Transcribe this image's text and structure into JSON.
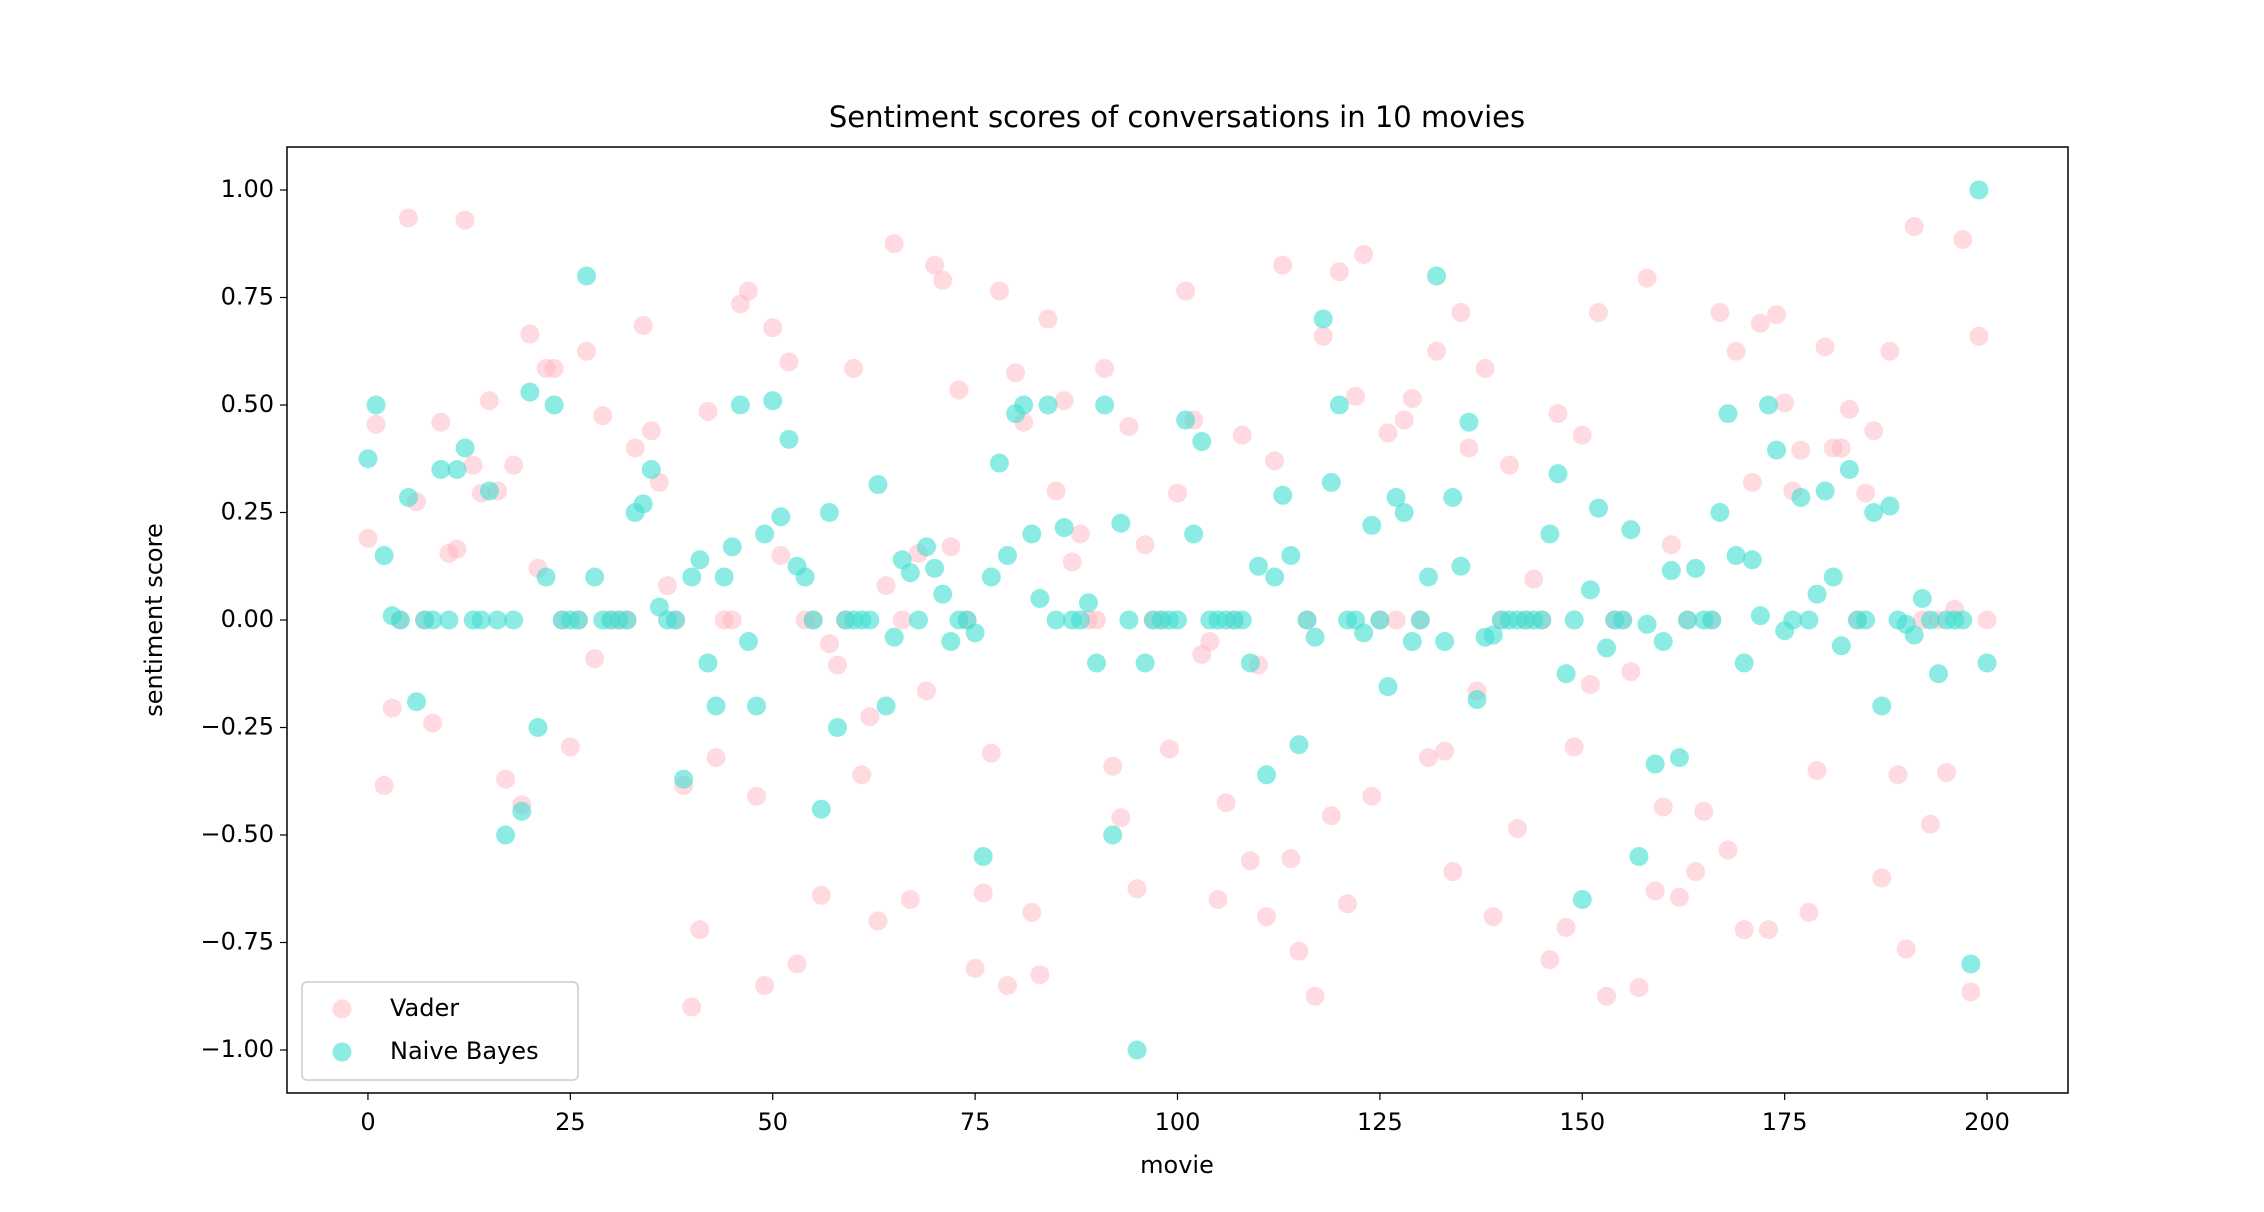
{
  "chart_data": {
    "type": "scatter",
    "title": "Sentiment scores of conversations in 10 movies",
    "xlabel": "movie",
    "ylabel": "sentiment score",
    "xlim": [
      -10,
      210
    ],
    "ylim": [
      -1.1,
      1.1
    ],
    "xticks": [
      0,
      25,
      50,
      75,
      100,
      125,
      150,
      175,
      200
    ],
    "yticks": [
      {
        "value": -1,
        "label": "−1.00"
      },
      {
        "value": -0.75,
        "label": "−0.75"
      },
      {
        "value": -0.5,
        "label": "−0.50"
      },
      {
        "value": -0.25,
        "label": "−0.25"
      },
      {
        "value": 0,
        "label": "0.00"
      },
      {
        "value": 0.25,
        "label": "0.25"
      },
      {
        "value": 0.5,
        "label": "0.50"
      },
      {
        "value": 0.75,
        "label": "0.75"
      },
      {
        "value": 1,
        "label": "1.00"
      }
    ],
    "grid": false,
    "legend": "lower left",
    "x": [
      0,
      1,
      2,
      3,
      4,
      5,
      6,
      7,
      8,
      9,
      10,
      11,
      12,
      13,
      14,
      15,
      16,
      17,
      18,
      19,
      20,
      21,
      22,
      23,
      24,
      25,
      26,
      27,
      28,
      29,
      30,
      31,
      32,
      33,
      34,
      35,
      36,
      37,
      38,
      39,
      40,
      41,
      42,
      43,
      44,
      45,
      46,
      47,
      48,
      49,
      50,
      51,
      52,
      53,
      54,
      55,
      56,
      57,
      58,
      59,
      60,
      61,
      62,
      63,
      64,
      65,
      66,
      67,
      68,
      69,
      70,
      71,
      72,
      73,
      74,
      75,
      76,
      77,
      78,
      79,
      80,
      81,
      82,
      83,
      84,
      85,
      86,
      87,
      88,
      89,
      90,
      91,
      92,
      93,
      94,
      95,
      96,
      97,
      98,
      99,
      100,
      101,
      102,
      103,
      104,
      105,
      106,
      107,
      108,
      109,
      110,
      111,
      112,
      113,
      114,
      115,
      116,
      117,
      118,
      119,
      120,
      121,
      122,
      123,
      124,
      125,
      126,
      127,
      128,
      129,
      130,
      131,
      132,
      133,
      134,
      135,
      136,
      137,
      138,
      139,
      140,
      141,
      142,
      143,
      144,
      145,
      146,
      147,
      148,
      149,
      150,
      151,
      152,
      153,
      154,
      155,
      156,
      157,
      158,
      159,
      160,
      161,
      162,
      163,
      164,
      165,
      166,
      167,
      168,
      169,
      170,
      171,
      172,
      173,
      174,
      175,
      176,
      177,
      178,
      179,
      180,
      181,
      182,
      183,
      184,
      185,
      186,
      187,
      188,
      189,
      190,
      191,
      192,
      193,
      194,
      195,
      196,
      197,
      198,
      199,
      200
    ],
    "series": [
      {
        "name": "Vader",
        "color": "#ffb6c1",
        "values": [
          0.19,
          0.455,
          -0.385,
          -0.205,
          0,
          0.935,
          0.275,
          0,
          -0.24,
          0.46,
          0.155,
          0.165,
          0.93,
          0.36,
          0.295,
          0.51,
          0.3,
          -0.37,
          0.36,
          -0.43,
          0.665,
          0.12,
          0.585,
          0.585,
          0,
          -0.295,
          0,
          0.625,
          -0.09,
          0.475,
          0,
          0,
          0,
          0.4,
          0.685,
          0.44,
          0.32,
          0.08,
          0,
          -0.385,
          -0.9,
          -0.72,
          0.485,
          -0.32,
          0,
          0,
          0.735,
          0.765,
          -0.41,
          -0.85,
          0.68,
          0.15,
          0.6,
          -0.8,
          0,
          0,
          -0.64,
          -0.055,
          -0.105,
          0,
          0.585,
          -0.36,
          -0.225,
          -0.7,
          0.08,
          0.875,
          0,
          -0.65,
          0.155,
          -0.165,
          0.825,
          0.79,
          0.17,
          0.535,
          0,
          -0.81,
          -0.635,
          -0.31,
          0.765,
          -0.85,
          0.575,
          0.46,
          -0.68,
          -0.825,
          0.7,
          0.3,
          0.51,
          0.135,
          0.2,
          0,
          0,
          0.585,
          -0.34,
          -0.46,
          0.45,
          -0.625,
          0.175,
          0,
          0,
          -0.3,
          0.295,
          0.765,
          0.465,
          -0.08,
          -0.05,
          -0.65,
          -0.425,
          0,
          0.43,
          -0.56,
          -0.105,
          -0.69,
          0.37,
          0.825,
          -0.555,
          -0.77,
          0,
          -0.875,
          0.66,
          -0.455,
          0.81,
          -0.66,
          0.52,
          0.85,
          -0.41,
          0,
          0.435,
          0,
          0.465,
          0.515,
          0,
          -0.32,
          0.625,
          -0.305,
          -0.585,
          0.715,
          0.4,
          -0.165,
          0.585,
          -0.69,
          0,
          0.36,
          -0.485,
          0,
          0.095,
          0,
          -0.79,
          0.48,
          -0.715,
          -0.295,
          0.43,
          -0.15,
          0.715,
          -0.875,
          0,
          0,
          -0.12,
          -0.855,
          0.795,
          -0.63,
          -0.435,
          0.175,
          -0.645,
          0,
          -0.585,
          -0.445,
          0,
          0.715,
          -0.535,
          0.625,
          -0.72,
          0.32,
          0.69,
          -0.72,
          0.71,
          0.505,
          0.3,
          0.395,
          -0.68,
          -0.35,
          0.635,
          0.4,
          0.4,
          0.49,
          0,
          0.295,
          0.44,
          -0.6,
          0.625,
          -0.36,
          -0.765,
          0.915,
          0,
          -0.475,
          0,
          -0.355,
          0.025,
          0.885,
          -0.865,
          0.66,
          0
        ]
      },
      {
        "name": "Naive Bayes",
        "color": "#40e0d0",
        "values": [
          0.375,
          0.5,
          0.15,
          0.01,
          0,
          0.285,
          -0.19,
          0,
          0,
          0.35,
          0,
          0.35,
          0.4,
          0,
          0,
          0.3,
          0,
          -0.5,
          0,
          -0.445,
          0.53,
          -0.25,
          0.1,
          0.5,
          0,
          0,
          0,
          0.8,
          0.1,
          0,
          0,
          0,
          0,
          0.25,
          0.27,
          0.35,
          0.03,
          0,
          0,
          -0.37,
          0.1,
          0.14,
          -0.1,
          -0.2,
          0.1,
          0.17,
          0.5,
          -0.05,
          -0.2,
          0.2,
          0.51,
          0.24,
          0.42,
          0.125,
          0.1,
          0,
          -0.44,
          0.25,
          -0.25,
          0,
          0,
          0,
          0,
          0.315,
          -0.2,
          -0.04,
          0.14,
          0.11,
          0,
          0.17,
          0.12,
          0.06,
          -0.05,
          0,
          0,
          -0.03,
          -0.55,
          0.1,
          0.365,
          0.15,
          0.48,
          0.5,
          0.2,
          0.05,
          0.5,
          0,
          0.215,
          0,
          0,
          0.04,
          -0.1,
          0.5,
          -0.5,
          0.225,
          0,
          -1,
          -0.1,
          0,
          0,
          0,
          0,
          0.465,
          0.2,
          0.415,
          0,
          0,
          0,
          0,
          0,
          -0.1,
          0.125,
          -0.36,
          0.1,
          0.29,
          0.15,
          -0.29,
          0,
          -0.04,
          0.7,
          0.32,
          0.5,
          0,
          0,
          -0.03,
          0.22,
          0,
          -0.155,
          0.285,
          0.25,
          -0.05,
          0,
          0.1,
          0.8,
          -0.05,
          0.285,
          0.125,
          0.46,
          -0.185,
          -0.04,
          -0.035,
          0,
          0,
          0,
          0,
          0,
          0,
          0.2,
          0.34,
          -0.125,
          0,
          -0.65,
          0.07,
          0.26,
          -0.065,
          0,
          0,
          0.21,
          -0.55,
          -0.01,
          -0.335,
          -0.05,
          0.115,
          -0.32,
          0,
          0.12,
          0,
          0,
          0.25,
          0.48,
          0.15,
          -0.1,
          0.14,
          0.01,
          0.5,
          0.395,
          -0.025,
          0,
          0.285,
          0,
          0.06,
          0.3,
          0.1,
          -0.06,
          0.35,
          0,
          0,
          0.25,
          -0.2,
          0.265,
          0,
          -0.01,
          -0.035,
          0.05,
          0,
          -0.125,
          0,
          0,
          0,
          -0.8,
          1,
          -0.1
        ]
      }
    ]
  }
}
